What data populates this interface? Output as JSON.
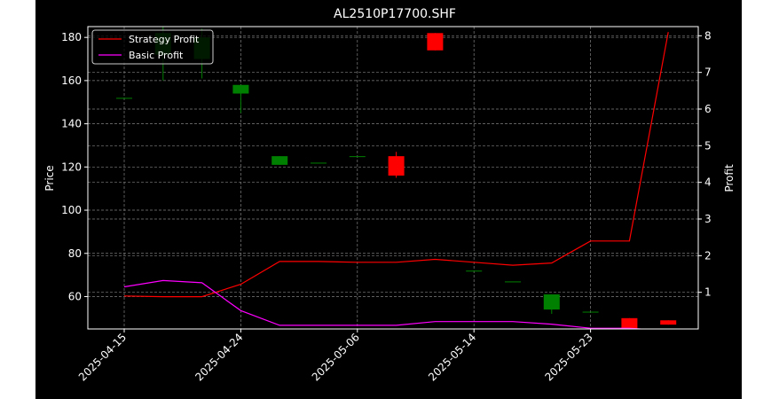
{
  "chart_data": {
    "type": "candlestick",
    "title": "AL2510P17700.SHF",
    "ylabel_left": "Price",
    "ylabel_right": "Profit",
    "ylim_left": [
      45,
      185
    ],
    "ylim_right": [
      0,
      8.25
    ],
    "yticks_left": [
      60,
      80,
      100,
      120,
      140,
      160,
      180
    ],
    "yticks_right": [
      1,
      2,
      3,
      4,
      5,
      6,
      7,
      8
    ],
    "xticks": [
      {
        "label": "2025-04-15",
        "index": 0
      },
      {
        "label": "2025-04-24",
        "index": 3
      },
      {
        "label": "2025-05-06",
        "index": 6
      },
      {
        "label": "2025-05-14",
        "index": 9
      },
      {
        "label": "2025-05-23",
        "index": 12
      }
    ],
    "grid": true,
    "legend_position": "upper-left",
    "colors": {
      "up": "#008000",
      "down": "#ff0000",
      "strategy": "#ff0000",
      "basic": "#ff00ff",
      "grid": "#808080",
      "axes": "#ffffff"
    },
    "candles": [
      {
        "index": 0,
        "open": 152,
        "high": 152,
        "low": 152,
        "close": 152
      },
      {
        "index": 1,
        "open": 172,
        "high": 185,
        "low": 160,
        "close": 182
      },
      {
        "index": 2,
        "open": 170,
        "high": 184,
        "low": 161,
        "close": 180
      },
      {
        "index": 3,
        "open": 154,
        "high": 158,
        "low": 145,
        "close": 158
      },
      {
        "index": 4,
        "open": 121,
        "high": 125,
        "low": 121,
        "close": 125
      },
      {
        "index": 5,
        "open": 122,
        "high": 122,
        "low": 122,
        "close": 122
      },
      {
        "index": 6,
        "open": 125,
        "high": 125,
        "low": 125,
        "close": 125
      },
      {
        "index": 7,
        "open": 125,
        "high": 127,
        "low": 115,
        "close": 116
      },
      {
        "index": 8,
        "open": 182,
        "high": 182,
        "low": 174,
        "close": 174
      },
      {
        "index": 9,
        "open": 72,
        "high": 72,
        "low": 72,
        "close": 72
      },
      {
        "index": 10,
        "open": 67,
        "high": 67,
        "low": 67,
        "close": 67
      },
      {
        "index": 11,
        "open": 54,
        "high": 61,
        "low": 52,
        "close": 61
      },
      {
        "index": 12,
        "open": 53,
        "high": 53,
        "low": 53,
        "close": 53
      },
      {
        "index": 13,
        "open": 50,
        "high": 50,
        "low": 45,
        "close": 45
      },
      {
        "index": 14,
        "open": 49,
        "high": 49,
        "low": 47,
        "close": 47
      }
    ],
    "series": [
      {
        "name": "Strategy Profit",
        "axis": "right",
        "points": [
          [
            0,
            0.9
          ],
          [
            1,
            0.88
          ],
          [
            2,
            0.88
          ],
          [
            3,
            1.22
          ],
          [
            4,
            1.84
          ],
          [
            5,
            1.84
          ],
          [
            6,
            1.82
          ],
          [
            7,
            1.82
          ],
          [
            8,
            1.9
          ],
          [
            9,
            1.82
          ],
          [
            10,
            1.74
          ],
          [
            11,
            1.8
          ],
          [
            12,
            2.4
          ],
          [
            13,
            2.4
          ],
          [
            14,
            8.1
          ]
        ]
      },
      {
        "name": "Basic Profit",
        "axis": "right",
        "points": [
          [
            0,
            1.15
          ],
          [
            1,
            1.32
          ],
          [
            2,
            1.26
          ],
          [
            3,
            0.5
          ],
          [
            4,
            0.1
          ],
          [
            5,
            0.1
          ],
          [
            6,
            0.1
          ],
          [
            7,
            0.1
          ],
          [
            8,
            0.2
          ],
          [
            9,
            0.2
          ],
          [
            10,
            0.2
          ],
          [
            11,
            0.13
          ],
          [
            12,
            0.02
          ],
          [
            13,
            0.02
          ],
          [
            14,
            -0.05
          ]
        ]
      }
    ]
  }
}
